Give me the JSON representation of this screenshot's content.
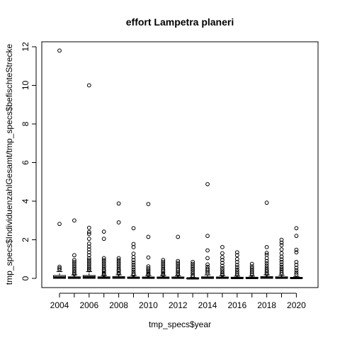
{
  "chart_data": {
    "type": "boxplot",
    "title": "effort Lampetra planeri",
    "xlabel": "tmp_specs$year",
    "ylabel": "tmp_specs$IndividuenzahlGesamt/tmp_specs$befischteStrecke",
    "ylim": [
      0,
      12
    ],
    "y_ticks": [
      0,
      2,
      4,
      6,
      8,
      10,
      12
    ],
    "x_tick_labels": [
      "2004",
      "2006",
      "2008",
      "2010",
      "2012",
      "2014",
      "2016",
      "2018",
      "2020"
    ],
    "categories": [
      "2004",
      "2005",
      "2006",
      "2007",
      "2008",
      "2009",
      "2010",
      "2011",
      "2012",
      "2013",
      "2014",
      "2015",
      "2016",
      "2017",
      "2018",
      "2019",
      "2020"
    ],
    "grid": false,
    "boxes": [
      {
        "year": "2004",
        "q1": 0.0,
        "median": 0.05,
        "q3": 0.15,
        "whisker_hi": 0.35,
        "outliers": [
          11.8,
          2.82,
          0.6,
          0.52,
          0.45
        ]
      },
      {
        "year": "2005",
        "q1": 0.0,
        "median": 0.03,
        "q3": 0.08,
        "whisker_hi": 0.18,
        "outliers": [
          3.0,
          1.2,
          0.95,
          0.85,
          0.75,
          0.65,
          0.55,
          0.45,
          0.35,
          0.28,
          0.22
        ]
      },
      {
        "year": "2006",
        "q1": 0.0,
        "median": 0.06,
        "q3": 0.15,
        "whisker_hi": 0.35,
        "outliers": [
          10.0,
          2.62,
          2.4,
          2.3,
          2.05,
          1.8,
          1.65,
          1.5,
          1.35,
          1.2,
          1.05,
          0.95,
          0.85,
          0.75,
          0.65,
          0.55,
          0.48,
          0.42
        ]
      },
      {
        "year": "2007",
        "q1": 0.0,
        "median": 0.03,
        "q3": 0.08,
        "whisker_hi": 0.15,
        "outliers": [
          2.42,
          2.05,
          1.05,
          0.95,
          0.85,
          0.75,
          0.65,
          0.55,
          0.45,
          0.38,
          0.3,
          0.24,
          0.19
        ]
      },
      {
        "year": "2008",
        "q1": 0.0,
        "median": 0.04,
        "q3": 0.09,
        "whisker_hi": 0.18,
        "outliers": [
          3.88,
          2.9,
          1.05,
          0.95,
          0.85,
          0.75,
          0.65,
          0.55,
          0.45,
          0.38,
          0.3,
          0.24
        ]
      },
      {
        "year": "2009",
        "q1": 0.0,
        "median": 0.03,
        "q3": 0.07,
        "whisker_hi": 0.15,
        "outliers": [
          2.6,
          1.78,
          1.62,
          1.28,
          1.1,
          0.95,
          0.82,
          0.7,
          0.58,
          0.46,
          0.35,
          0.25,
          0.19
        ]
      },
      {
        "year": "2010",
        "q1": 0.0,
        "median": 0.03,
        "q3": 0.07,
        "whisker_hi": 0.15,
        "outliers": [
          3.85,
          2.15,
          1.08,
          0.62,
          0.52,
          0.45,
          0.38,
          0.3,
          0.23,
          0.18
        ]
      },
      {
        "year": "2011",
        "q1": 0.0,
        "median": 0.03,
        "q3": 0.07,
        "whisker_hi": 0.15,
        "outliers": [
          0.95,
          0.85,
          0.75,
          0.65,
          0.55,
          0.45,
          0.38,
          0.3,
          0.23,
          0.18
        ]
      },
      {
        "year": "2012",
        "q1": 0.0,
        "median": 0.03,
        "q3": 0.07,
        "whisker_hi": 0.14,
        "outliers": [
          2.15,
          0.9,
          0.8,
          0.7,
          0.6,
          0.5,
          0.42,
          0.34,
          0.26,
          0.2
        ]
      },
      {
        "year": "2013",
        "q1": 0.0,
        "median": 0.0,
        "q3": 0.02,
        "whisker_hi": 0.05,
        "outliers": [
          0.85,
          0.75,
          0.65,
          0.55,
          0.45,
          0.35,
          0.25,
          0.15,
          0.1
        ]
      },
      {
        "year": "2014",
        "q1": 0.0,
        "median": 0.03,
        "q3": 0.08,
        "whisker_hi": 0.18,
        "outliers": [
          4.88,
          2.2,
          1.45,
          1.05,
          0.72,
          0.6,
          0.5,
          0.42,
          0.34,
          0.26
        ]
      },
      {
        "year": "2015",
        "q1": 0.0,
        "median": 0.03,
        "q3": 0.07,
        "whisker_hi": 0.15,
        "outliers": [
          1.62,
          1.3,
          1.1,
          0.95,
          0.8,
          0.65,
          0.52,
          0.42,
          0.32,
          0.24,
          0.18
        ]
      },
      {
        "year": "2016",
        "q1": 0.0,
        "median": 0.02,
        "q3": 0.06,
        "whisker_hi": 0.12,
        "outliers": [
          1.35,
          1.2,
          1.0,
          0.85,
          0.7,
          0.58,
          0.46,
          0.36,
          0.26,
          0.18
        ]
      },
      {
        "year": "2017",
        "q1": 0.0,
        "median": 0.02,
        "q3": 0.06,
        "whisker_hi": 0.12,
        "outliers": [
          0.75,
          0.62,
          0.52,
          0.42,
          0.33,
          0.25,
          0.18
        ]
      },
      {
        "year": "2018",
        "q1": 0.0,
        "median": 0.04,
        "q3": 0.09,
        "whisker_hi": 0.18,
        "outliers": [
          3.92,
          1.62,
          1.32,
          1.22,
          1.05,
          0.9,
          0.78,
          0.66,
          0.55,
          0.45,
          0.36,
          0.28,
          0.22
        ]
      },
      {
        "year": "2019",
        "q1": 0.0,
        "median": 0.03,
        "q3": 0.08,
        "whisker_hi": 0.16,
        "outliers": [
          2.0,
          1.85,
          1.72,
          1.5,
          1.3,
          1.12,
          0.98,
          0.85,
          0.72,
          0.6,
          0.5,
          0.4,
          0.3,
          0.22
        ]
      },
      {
        "year": "2020",
        "q1": 0.0,
        "median": 0.02,
        "q3": 0.05,
        "whisker_hi": 0.1,
        "outliers": [
          2.6,
          2.2,
          1.48,
          1.35,
          0.85,
          0.7,
          0.55,
          0.42,
          0.3,
          0.2
        ]
      }
    ]
  }
}
